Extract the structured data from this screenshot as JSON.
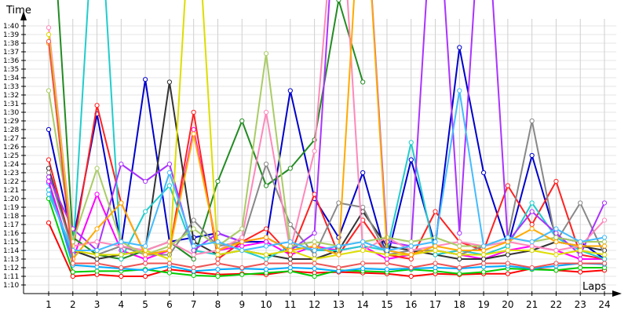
{
  "chart_data": {
    "type": "line",
    "title": "",
    "xlabel": "Laps",
    "ylabel": "Time",
    "grid": true,
    "xlim": [
      1,
      24
    ],
    "ylim": [
      "1:09",
      "1:43"
    ],
    "x_ticks": [
      1,
      2,
      3,
      4,
      5,
      6,
      7,
      8,
      9,
      10,
      11,
      12,
      13,
      14,
      15,
      16,
      17,
      18,
      19,
      20,
      21,
      22,
      23,
      24
    ],
    "y_ticks": [
      "1:10",
      "1:11",
      "1:12",
      "1:13",
      "1:14",
      "1:15",
      "1:16",
      "1:17",
      "1:18",
      "1:19",
      "1:20",
      "1:21",
      "1:22",
      "1:23",
      "1:24",
      "1:25",
      "1:26",
      "1:27",
      "1:28",
      "1:29",
      "1:30",
      "1:31",
      "1:32",
      "1:33",
      "1:34",
      "1:35",
      "1:36",
      "1:37",
      "1:38",
      "1:39",
      "1:40"
    ],
    "series": [
      {
        "color": "#ff0000",
        "values": [
          77.2,
          71.0,
          71.2,
          71.0,
          71.0,
          71.8,
          71.5,
          71.2,
          71.3,
          71.2,
          71.6,
          71.4,
          71.5,
          71.4,
          71.3,
          71.0,
          71.3,
          71.2,
          71.3,
          71.3,
          71.9,
          71.7,
          71.5,
          71.7
        ]
      },
      {
        "color": "#00cc00",
        "values": [
          80.0,
          71.5,
          71.6,
          71.6,
          71.8,
          71.4,
          71.1,
          71.0,
          71.2,
          71.4,
          71.6,
          71.0,
          71.7,
          71.6,
          71.5,
          71.8,
          71.6,
          71.3,
          71.5,
          71.9,
          71.8,
          71.7,
          72.0,
          72.0
        ]
      },
      {
        "color": "#00aaff",
        "values": [
          81.8,
          72.3,
          72.1,
          71.9,
          71.7,
          72.2,
          71.6,
          71.8,
          71.9,
          71.8,
          72.0,
          71.9,
          71.6,
          71.9,
          71.8,
          71.9,
          72.0,
          71.9,
          72.1,
          72.2,
          71.9,
          72.2,
          72.5,
          72.4
        ]
      },
      {
        "color": "#0000cc",
        "values": [
          88.0,
          75.0,
          89.8,
          74.5,
          93.8,
          75.0,
          75.5,
          76.0,
          75.0,
          75.0,
          92.5,
          80.0,
          75.5,
          83.0,
          73.0,
          84.5,
          74.5,
          97.5,
          83.0,
          74.5,
          85.0,
          75.5,
          75.0,
          73.0
        ]
      },
      {
        "color": "#ff00ff",
        "values": [
          82.0,
          73.0,
          80.5,
          74.0,
          73.0,
          74.0,
          88.0,
          74.0,
          74.5,
          75.0,
          73.5,
          74.5,
          74.0,
          74.5,
          73.0,
          73.5,
          74.0,
          73.5,
          73.0,
          74.0,
          74.5,
          74.0,
          73.0,
          73.0
        ]
      },
      {
        "color": "#ff2222",
        "values": [
          84.5,
          74.0,
          90.8,
          79.5,
          73.5,
          74.0,
          90.0,
          73.0,
          75.0,
          76.5,
          73.5,
          80.5,
          73.5,
          77.5,
          73.5,
          73.0,
          78.5,
          75.0,
          74.0,
          81.5,
          77.0,
          82.0,
          73.5,
          73.0
        ]
      },
      {
        "color": "#228b22",
        "values": [
          120.0,
          75.5,
          73.5,
          73.0,
          74.0,
          75.0,
          73.0,
          82.0,
          89.0,
          81.5,
          83.5,
          86.8,
          103.0,
          93.5,
          null,
          null,
          null,
          null,
          null,
          null,
          null,
          null,
          null,
          null
        ]
      },
      {
        "color": "#333333",
        "values": [
          83.5,
          74.0,
          73.0,
          73.5,
          74.0,
          93.5,
          75.0,
          73.5,
          74.0,
          73.5,
          73.0,
          73.0,
          74.0,
          78.5,
          74.5,
          74.0,
          73.5,
          73.0,
          73.0,
          73.5,
          74.0,
          75.0,
          74.5,
          74.0
        ]
      },
      {
        "color": "#22cccc",
        "values": [
          81.0,
          73.5,
          120.0,
          73.0,
          78.5,
          81.5,
          74.0,
          73.5,
          74.0,
          73.0,
          74.5,
          74.0,
          74.0,
          74.5,
          74.0,
          86.5,
          73.5,
          74.0,
          73.5,
          74.5,
          79.5,
          75.5,
          74.0,
          73.0
        ]
      },
      {
        "color": "#888888",
        "values": [
          83.0,
          74.0,
          73.5,
          74.5,
          73.5,
          73.5,
          77.5,
          74.5,
          75.0,
          84.0,
          77.0,
          73.5,
          79.5,
          79.0,
          73.5,
          74.0,
          74.0,
          73.5,
          74.5,
          75.5,
          89.0,
          75.0,
          79.5,
          73.5
        ]
      },
      {
        "color": "#aa33ff",
        "values": [
          82.5,
          76.5,
          74.0,
          84.0,
          82.0,
          84.0,
          74.0,
          76.0,
          75.0,
          75.5,
          74.0,
          76.0,
          120.0,
          120.0,
          75.0,
          74.5,
          120.0,
          76.0,
          120.0,
          75.0,
          78.5,
          76.0,
          73.5,
          79.5
        ]
      },
      {
        "color": "#ff88bb",
        "values": [
          99.8,
          74.5,
          75.0,
          74.5,
          74.0,
          75.0,
          73.5,
          74.0,
          75.5,
          90.0,
          74.0,
          85.5,
          120.0,
          74.0,
          75.5,
          74.0,
          74.5,
          75.0,
          74.5,
          75.0,
          74.5,
          74.0,
          74.5,
          77.5
        ]
      },
      {
        "color": "#dddd00",
        "values": [
          99.0,
          74.0,
          73.5,
          73.5,
          74.0,
          73.0,
          120.0,
          73.5,
          74.0,
          73.5,
          74.0,
          73.0,
          73.5,
          74.0,
          73.5,
          73.5,
          74.0,
          73.5,
          73.5,
          74.0,
          74.0,
          73.5,
          74.0,
          73.5
        ]
      },
      {
        "color": "#aacc66",
        "values": [
          92.5,
          75.0,
          83.5,
          75.0,
          73.5,
          74.5,
          76.5,
          74.5,
          76.5,
          96.8,
          74.5,
          75.0,
          74.5,
          75.0,
          75.5,
          75.0,
          75.5,
          74.5,
          74.5,
          75.5,
          75.0,
          75.5,
          75.0,
          75.0
        ]
      },
      {
        "color": "#ffaa00",
        "values": [
          98.0,
          73.0,
          76.5,
          79.5,
          73.5,
          74.0,
          87.5,
          74.0,
          75.0,
          75.5,
          74.0,
          74.5,
          73.5,
          120.0,
          74.0,
          73.5,
          74.5,
          74.0,
          74.0,
          75.0,
          76.5,
          75.0,
          74.5,
          74.5
        ]
      },
      {
        "color": "#44bbff",
        "values": [
          80.5,
          74.0,
          74.0,
          75.0,
          74.5,
          83.0,
          74.5,
          75.0,
          74.0,
          74.5,
          75.0,
          74.0,
          74.5,
          75.0,
          74.0,
          74.5,
          75.0,
          92.5,
          74.5,
          75.5,
          75.0,
          76.5,
          75.0,
          75.5
        ]
      },
      {
        "color": "#ee5555",
        "values": [
          98.2,
          72.5,
          72.5,
          72.0,
          72.5,
          72.5,
          72.0,
          72.5,
          72.0,
          72.5,
          72.5,
          72.5,
          72.0,
          72.5,
          72.5,
          72.0,
          72.5,
          72.0,
          72.5,
          72.5,
          72.0,
          72.5,
          72.5,
          72.5
        ]
      }
    ]
  }
}
